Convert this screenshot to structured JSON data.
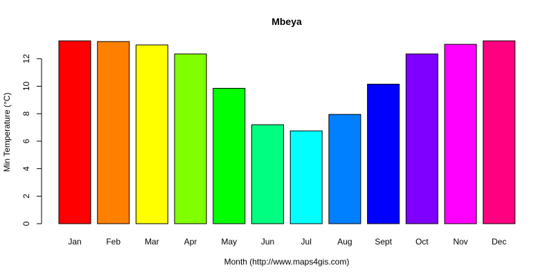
{
  "chart_data": {
    "type": "bar",
    "title": "Mbeya",
    "xlabel": "Month (http://www.maps4gis.com)",
    "ylabel": "Min Temperature (°C)",
    "categories": [
      "Jan",
      "Feb",
      "Mar",
      "Apr",
      "May",
      "Jun",
      "Jul",
      "Aug",
      "Sept",
      "Oct",
      "Nov",
      "Dec"
    ],
    "values": [
      13.3,
      13.25,
      13.0,
      12.35,
      9.85,
      7.2,
      6.75,
      7.95,
      10.15,
      12.35,
      13.05,
      13.3
    ],
    "colors": [
      "#FF0000",
      "#FF8000",
      "#FFFF00",
      "#80FF00",
      "#00FF00",
      "#00FF80",
      "#00FFFF",
      "#0080FF",
      "#0000FF",
      "#8000FF",
      "#FF00FF",
      "#FF0080"
    ],
    "yticks": [
      0,
      2,
      4,
      6,
      8,
      10,
      12
    ],
    "ylim": [
      0,
      13.3
    ],
    "grid": false,
    "legend": "none"
  }
}
